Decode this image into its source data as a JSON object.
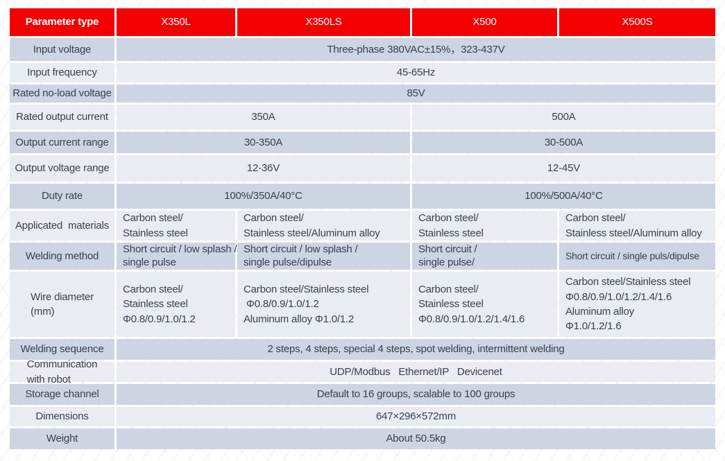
{
  "colors": {
    "header_red": "#f40000",
    "row_dark": "#cdd4e2",
    "row_light": "#e9ecf3",
    "text": "#3a404c",
    "header_text": "#ffffff"
  },
  "table": {
    "columns": [
      "Parameter type",
      "X350L",
      "X350LS",
      "X500",
      "X500S"
    ],
    "rows": [
      {
        "label": "Input voltage",
        "cells": [
          {
            "text": "Three-phase 380VAC±15%，323-437V"
          }
        ]
      },
      {
        "label": "Input frequency",
        "cells": [
          {
            "text": "45-65Hz"
          }
        ]
      },
      {
        "label": "Rated no-load voltage",
        "cells": [
          {
            "text": "85V"
          }
        ]
      },
      {
        "label": "Rated output current",
        "cells": [
          {
            "text": "350A"
          },
          {
            "text": "500A"
          }
        ]
      },
      {
        "label": "Output current range",
        "cells": [
          {
            "text": "30-350A"
          },
          {
            "text": "30-500A"
          }
        ]
      },
      {
        "label": "Output voltage range",
        "cells": [
          {
            "text": "12-36V"
          },
          {
            "text": "12-45V"
          }
        ]
      },
      {
        "label": "Duty rate",
        "cells": [
          {
            "text": "100%/350A/40°C"
          },
          {
            "text": "100%/500A/40°C"
          }
        ]
      },
      {
        "label": "Applicated  materials",
        "cells": [
          {
            "text": "Carbon steel/\nStainless steel"
          },
          {
            "text": "Carbon steel/\nStainless steel/Aluminum alloy"
          },
          {
            "text": "Carbon steel/\nStainless steel"
          },
          {
            "text": "Carbon steel/\nStainless steel/Aluminum alloy"
          }
        ]
      },
      {
        "label": "Welding method",
        "cells": [
          {
            "text": "Short circuit / low splash /\nsingle pulse"
          },
          {
            "text": "Short circuit / low splash /\nsingle pulse/dipulse"
          },
          {
            "text": "Short circuit /\nsingle pulse/"
          },
          {
            "text": "Short circuit / single puls/dipulse"
          }
        ]
      },
      {
        "label": "Wire diameter\n(mm)",
        "cells": [
          {
            "text": "Carbon steel/\nStainless steel\nΦ0.8/0.9/1.0/1.2"
          },
          {
            "text": "Carbon steel/Stainless steel\n Φ0.8/0.9/1.0/1.2\nAluminum alloy Φ1.0/1.2"
          },
          {
            "text": "Carbon steel/\nStainless steel\nΦ0.8/0.9/1.0/1.2/1.4/1.6"
          },
          {
            "text": "Carbon steel/Stainless steel\nΦ0.8/0.9/1.0/1.2/1.4/1.6\nAluminum alloy\nΦ1.0/1.2/1.6"
          }
        ]
      },
      {
        "label": "Welding sequence",
        "cells": [
          {
            "text": "2 steps, 4 steps, special 4 steps, spot welding, intermittent welding"
          }
        ]
      },
      {
        "label": "Communication\nwith robot",
        "cells": [
          {
            "text": "UDP/Modbus   Ethernet/IP   Devicenet"
          }
        ]
      },
      {
        "label": "Storage channel",
        "cells": [
          {
            "text": "Default to 16 groups, scalable to 100 groups"
          }
        ]
      },
      {
        "label": "Dimensions",
        "cells": [
          {
            "text": "647×296×572mm"
          }
        ]
      },
      {
        "label": "Weight",
        "cells": [
          {
            "text": "About 50.5kg"
          }
        ]
      }
    ]
  }
}
